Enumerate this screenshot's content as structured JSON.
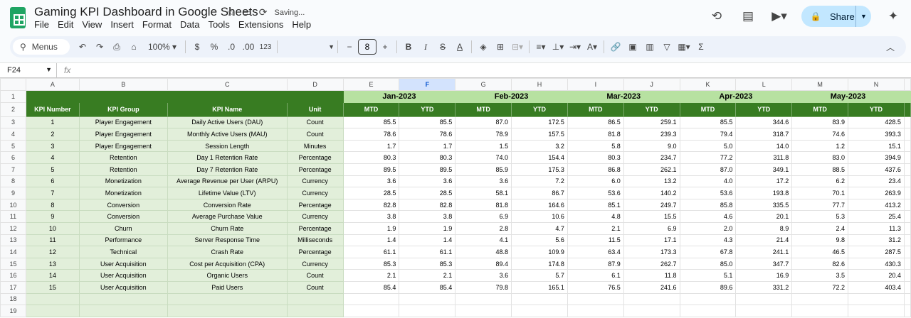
{
  "app": {
    "doc_title": "Gaming KPI Dashboard in Google Sheets",
    "saving_status": "Saving...",
    "menu": [
      "File",
      "Edit",
      "View",
      "Insert",
      "Format",
      "Data",
      "Tools",
      "Extensions",
      "Help"
    ],
    "share_label": "Share"
  },
  "toolbar": {
    "menus_label": "Menus",
    "zoom": "100%",
    "currency": "$",
    "percent": "%",
    "dec_decrease": ".0",
    "dec_increase": ".00",
    "number_format": "123",
    "font_size": "8"
  },
  "formula_bar": {
    "cell_ref": "F24",
    "fx": "fx"
  },
  "sheet": {
    "col_letters": [
      "A",
      "B",
      "C",
      "D",
      "E",
      "F",
      "G",
      "H",
      "I",
      "J",
      "K",
      "L",
      "M",
      "N"
    ],
    "selected_col": "F",
    "months": [
      "Jan-2023",
      "Feb-2023",
      "Mar-2023",
      "Apr-2023",
      "May-2023"
    ],
    "headers": [
      "KPI Number",
      "KPI Group",
      "KPI Name",
      "Unit"
    ],
    "sub_headers": [
      "MTD",
      "YTD"
    ],
    "row_numbers": [
      "1",
      "2",
      "3",
      "4",
      "5",
      "6",
      "7",
      "8",
      "9",
      "10",
      "11",
      "12",
      "13",
      "14",
      "15",
      "16",
      "17",
      "18",
      "19"
    ],
    "rows": [
      {
        "num": "1",
        "group": "Player Engagement",
        "name": "Daily Active Users (DAU)",
        "unit": "Count",
        "vals": [
          "85.5",
          "85.5",
          "87.0",
          "172.5",
          "86.5",
          "259.1",
          "85.5",
          "344.6",
          "83.9",
          "428.5"
        ]
      },
      {
        "num": "2",
        "group": "Player Engagement",
        "name": "Monthly Active Users (MAU)",
        "unit": "Count",
        "vals": [
          "78.6",
          "78.6",
          "78.9",
          "157.5",
          "81.8",
          "239.3",
          "79.4",
          "318.7",
          "74.6",
          "393.3"
        ]
      },
      {
        "num": "3",
        "group": "Player Engagement",
        "name": "Session Length",
        "unit": "Minutes",
        "vals": [
          "1.7",
          "1.7",
          "1.5",
          "3.2",
          "5.8",
          "9.0",
          "5.0",
          "14.0",
          "1.2",
          "15.1"
        ]
      },
      {
        "num": "4",
        "group": "Retention",
        "name": "Day 1 Retention Rate",
        "unit": "Percentage",
        "vals": [
          "80.3",
          "80.3",
          "74.0",
          "154.4",
          "80.3",
          "234.7",
          "77.2",
          "311.8",
          "83.0",
          "394.9"
        ]
      },
      {
        "num": "5",
        "group": "Retention",
        "name": "Day 7 Retention Rate",
        "unit": "Percentage",
        "vals": [
          "89.5",
          "89.5",
          "85.9",
          "175.3",
          "86.8",
          "262.1",
          "87.0",
          "349.1",
          "88.5",
          "437.6"
        ]
      },
      {
        "num": "6",
        "group": "Monetization",
        "name": "Average Revenue per User (ARPU)",
        "unit": "Currency",
        "vals": [
          "3.6",
          "3.6",
          "3.6",
          "7.2",
          "6.0",
          "13.2",
          "4.0",
          "17.2",
          "6.2",
          "23.4"
        ]
      },
      {
        "num": "7",
        "group": "Monetization",
        "name": "Lifetime Value (LTV)",
        "unit": "Currency",
        "vals": [
          "28.5",
          "28.5",
          "58.1",
          "86.7",
          "53.6",
          "140.2",
          "53.6",
          "193.8",
          "70.1",
          "263.9"
        ]
      },
      {
        "num": "8",
        "group": "Conversion",
        "name": "Conversion Rate",
        "unit": "Percentage",
        "vals": [
          "82.8",
          "82.8",
          "81.8",
          "164.6",
          "85.1",
          "249.7",
          "85.8",
          "335.5",
          "77.7",
          "413.2"
        ]
      },
      {
        "num": "9",
        "group": "Conversion",
        "name": "Average Purchase Value",
        "unit": "Currency",
        "vals": [
          "3.8",
          "3.8",
          "6.9",
          "10.6",
          "4.8",
          "15.5",
          "4.6",
          "20.1",
          "5.3",
          "25.4"
        ]
      },
      {
        "num": "10",
        "group": "Churn",
        "name": "Churn Rate",
        "unit": "Percentage",
        "vals": [
          "1.9",
          "1.9",
          "2.8",
          "4.7",
          "2.1",
          "6.9",
          "2.0",
          "8.9",
          "2.4",
          "11.3"
        ]
      },
      {
        "num": "11",
        "group": "Performance",
        "name": "Server Response Time",
        "unit": "Milliseconds",
        "vals": [
          "1.4",
          "1.4",
          "4.1",
          "5.6",
          "11.5",
          "17.1",
          "4.3",
          "21.4",
          "9.8",
          "31.2"
        ]
      },
      {
        "num": "12",
        "group": "Technical",
        "name": "Crash Rate",
        "unit": "Percentage",
        "vals": [
          "61.1",
          "61.1",
          "48.8",
          "109.9",
          "63.4",
          "173.3",
          "67.8",
          "241.1",
          "46.5",
          "287.5"
        ]
      },
      {
        "num": "13",
        "group": "User Acquisition",
        "name": "Cost per Acquisition (CPA)",
        "unit": "Currency",
        "vals": [
          "85.3",
          "85.3",
          "89.4",
          "174.8",
          "87.9",
          "262.7",
          "85.0",
          "347.7",
          "82.6",
          "430.3"
        ]
      },
      {
        "num": "14",
        "group": "User Acquisition",
        "name": "Organic Users",
        "unit": "Count",
        "vals": [
          "2.1",
          "2.1",
          "3.6",
          "5.7",
          "6.1",
          "11.8",
          "5.1",
          "16.9",
          "3.5",
          "20.4"
        ]
      },
      {
        "num": "15",
        "group": "User Acquisition",
        "name": "Paid Users",
        "unit": "Count",
        "vals": [
          "85.4",
          "85.4",
          "79.8",
          "165.1",
          "76.5",
          "241.6",
          "89.6",
          "331.2",
          "72.2",
          "403.4"
        ]
      }
    ]
  },
  "colors": {
    "header_dark": "#387c22",
    "header_light": "#b7e1a1",
    "fill_light": "#e2efda",
    "share_bg": "#c2e7ff"
  }
}
